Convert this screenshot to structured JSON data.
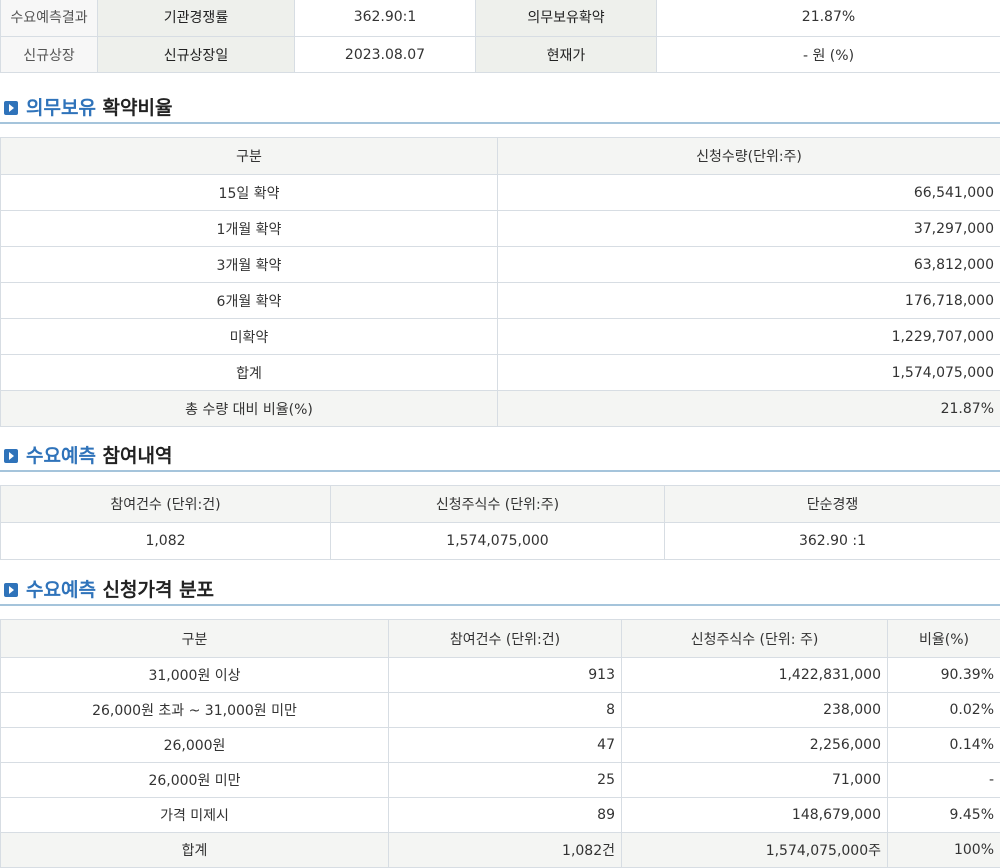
{
  "info": {
    "row1": {
      "label": "수요예측결과",
      "k1": "기관경쟁률",
      "v1": "362.90:1",
      "k2": "의무보유확약",
      "v2": "21.87%"
    },
    "row2": {
      "label": "신규상장",
      "k1": "신규상장일",
      "v1": "2023.08.07",
      "k2": "현재가",
      "v2": "- 원 (%)"
    }
  },
  "lockup": {
    "title_hl": "의무보유",
    "title_rest": " 확약비율",
    "headers": [
      "구분",
      "신청수량(단위:주)"
    ],
    "rows": [
      {
        "label": "15일 확약",
        "value": "66,541,000"
      },
      {
        "label": "1개월 확약",
        "value": "37,297,000"
      },
      {
        "label": "3개월 확약",
        "value": "63,812,000"
      },
      {
        "label": "6개월 확약",
        "value": "176,718,000"
      },
      {
        "label": "미확약",
        "value": "1,229,707,000"
      },
      {
        "label": "합계",
        "value": "1,574,075,000"
      }
    ],
    "ratio": {
      "label": "총 수량 대비 비율(%)",
      "value": "21.87%"
    }
  },
  "participation": {
    "title_hl": "수요예측",
    "title_rest": " 참여내역",
    "headers": [
      "참여건수 (단위:건)",
      "신청주식수 (단위:주)",
      "단순경쟁"
    ],
    "values": [
      "1,082",
      "1,574,075,000",
      "362.90 :1"
    ]
  },
  "distribution": {
    "title_hl": "수요예측",
    "title_rest": " 신청가격 분포",
    "headers": [
      "구분",
      "참여건수 (단위:건)",
      "신청주식수 (단위: 주)",
      "비율(%)"
    ],
    "rows": [
      [
        "31,000원 이상",
        "913",
        "1,422,831,000",
        "90.39%"
      ],
      [
        "26,000원 초과 ~ 31,000원 미만",
        "8",
        "238,000",
        "0.02%"
      ],
      [
        "26,000원",
        "47",
        "2,256,000",
        "0.14%"
      ],
      [
        "26,000원 미만",
        "25",
        "71,000",
        "-"
      ],
      [
        "가격 미제시",
        "89",
        "148,679,000",
        "9.45%"
      ]
    ],
    "total": [
      "합계",
      "1,082건",
      "1,574,075,000주",
      "100%"
    ]
  }
}
